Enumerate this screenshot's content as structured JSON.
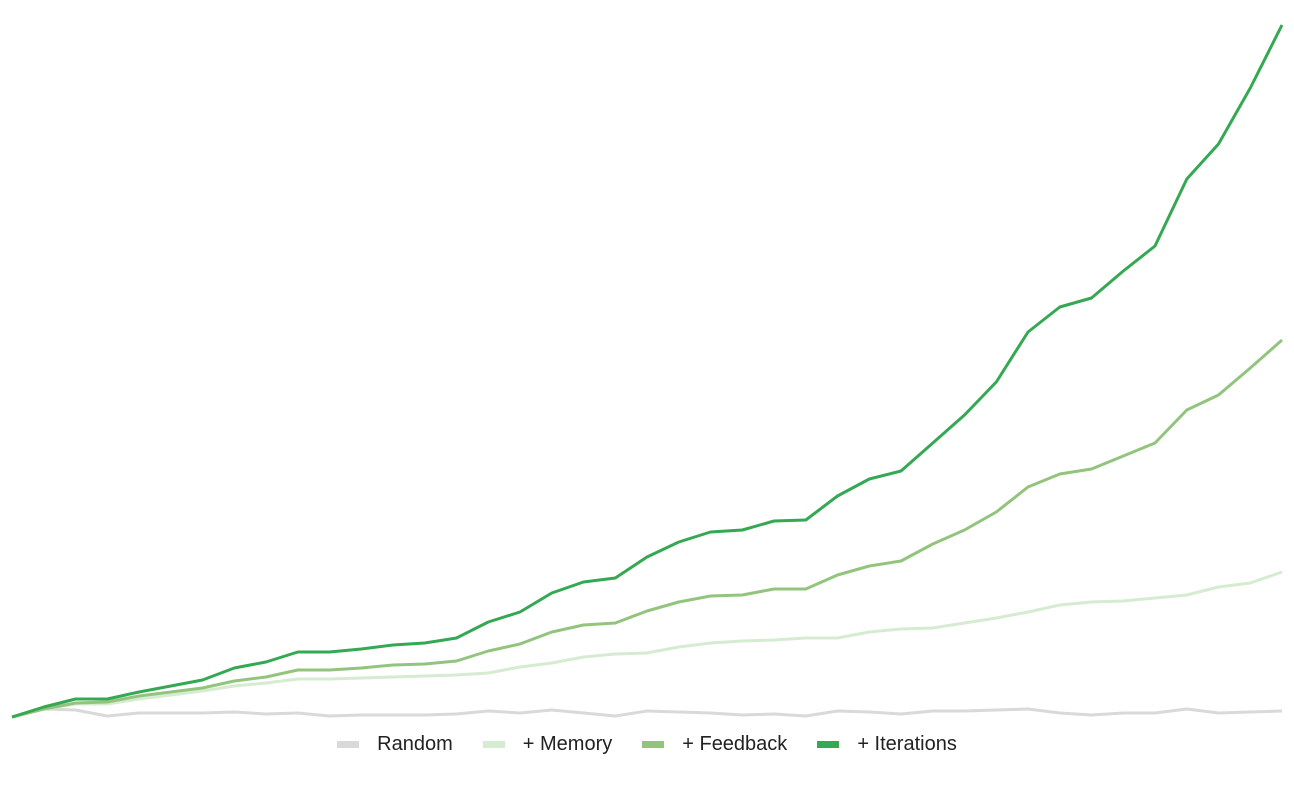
{
  "chart_data": {
    "type": "line",
    "series": [
      {
        "name": "Random",
        "color": "#d9d9d9",
        "values": [
          0,
          8,
          7,
          1,
          4,
          4,
          4,
          5,
          3,
          4,
          1,
          2,
          2,
          2,
          3,
          6,
          4,
          7,
          4,
          1,
          6,
          5,
          4,
          2,
          3,
          1,
          6,
          5,
          3,
          6,
          6,
          7,
          8,
          4,
          2,
          4,
          4,
          8,
          4,
          5,
          6
        ]
      },
      {
        "name": "+ Memory",
        "color": "#d5ecd1",
        "values": [
          0,
          8,
          13,
          13,
          18,
          22,
          26,
          31,
          34,
          38,
          38,
          39,
          40,
          41,
          42,
          44,
          50,
          54,
          60,
          63,
          64,
          70,
          74,
          76,
          77,
          79,
          79,
          85,
          88,
          89,
          94,
          99,
          105,
          112,
          115,
          116,
          119,
          122,
          130,
          134,
          145
        ]
      },
      {
        "name": "+ Feedback",
        "color": "#93c47d",
        "values": [
          0,
          8,
          14,
          15,
          21,
          25,
          29,
          36,
          40,
          47,
          47,
          49,
          52,
          53,
          56,
          66,
          73,
          85,
          92,
          94,
          106,
          115,
          121,
          122,
          128,
          128,
          142,
          151,
          156,
          173,
          187,
          205,
          230,
          243,
          248,
          261,
          274,
          307,
          322,
          349,
          377
        ]
      },
      {
        "name": "+ Iterations",
        "color": "#34a853",
        "values": [
          0,
          10,
          18,
          18,
          25,
          31,
          37,
          49,
          55,
          65,
          65,
          68,
          72,
          74,
          79,
          95,
          105,
          124,
          135,
          139,
          160,
          175,
          185,
          187,
          196,
          197,
          221,
          238,
          246,
          274,
          302,
          335,
          385,
          410,
          419,
          446,
          471,
          538,
          573,
          629,
          692
        ]
      }
    ]
  }
}
